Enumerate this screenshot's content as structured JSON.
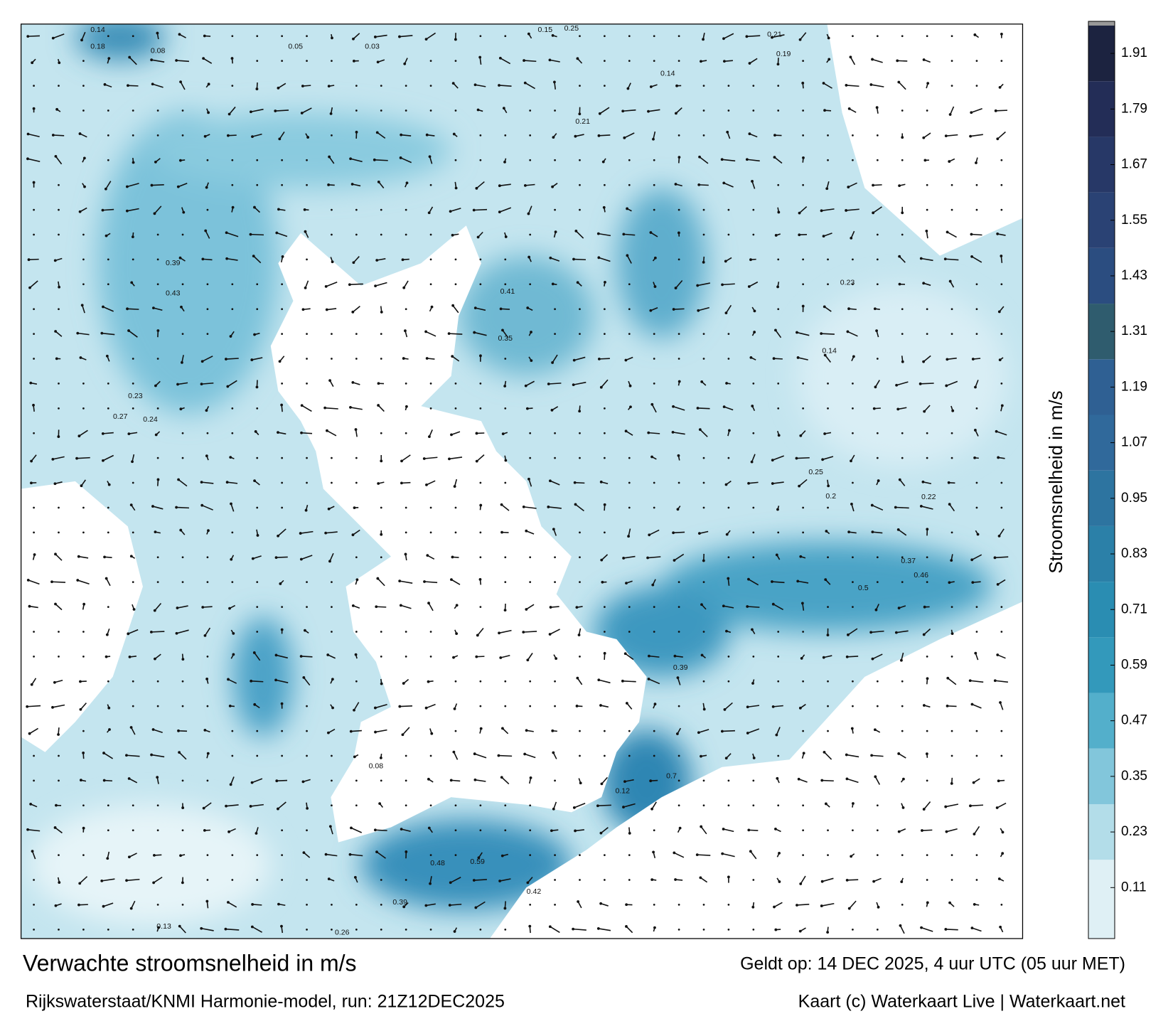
{
  "map": {
    "title": "Verwachte stroomsnelheid in m/s",
    "subtitle": "Rijkswaterstaat/KNMI Harmonie-model, run: 21Z12DEC2025",
    "valid_time": "Geldt op: 14 DEC 2025, 4 uur UTC (05 uur MET)",
    "credit": "Kaart (c) Waterkaart Live | Waterkaart.net",
    "colorbar": {
      "label": "Stroomsnelheid in m/s",
      "lim": [
        0,
        1.97
      ],
      "ticks": [
        0.11,
        0.23,
        0.35,
        0.47,
        0.59,
        0.71,
        0.83,
        0.95,
        1.07,
        1.19,
        1.31,
        1.43,
        1.55,
        1.67,
        1.79,
        1.91
      ],
      "colors": [
        "#dff0f5",
        "#b3dde9",
        "#82c6db",
        "#53afcb",
        "#3399bb",
        "#2a8db2",
        "#2b80a8",
        "#2d74a0",
        "#30699b",
        "#2f6093",
        "#2f5c6e",
        "#2b4d80",
        "#2a4274",
        "#273867",
        "#232d57",
        "#1c2340"
      ]
    },
    "speed_labels": [
      0.14,
      0.18,
      0.08,
      0.05,
      0.03,
      0.15,
      0.25,
      0.21,
      0.19,
      0.14,
      0.21,
      0.23,
      0.41,
      0.35,
      0.5,
      0.46,
      0.39,
      0.7,
      0.59,
      0.48,
      0.42,
      0.39,
      0.13,
      0.26,
      0.27,
      0.24,
      0.23,
      0.39,
      0.43,
      0.25,
      0.2,
      0.37,
      0.14,
      0.22,
      0.08,
      0.12
    ]
  }
}
